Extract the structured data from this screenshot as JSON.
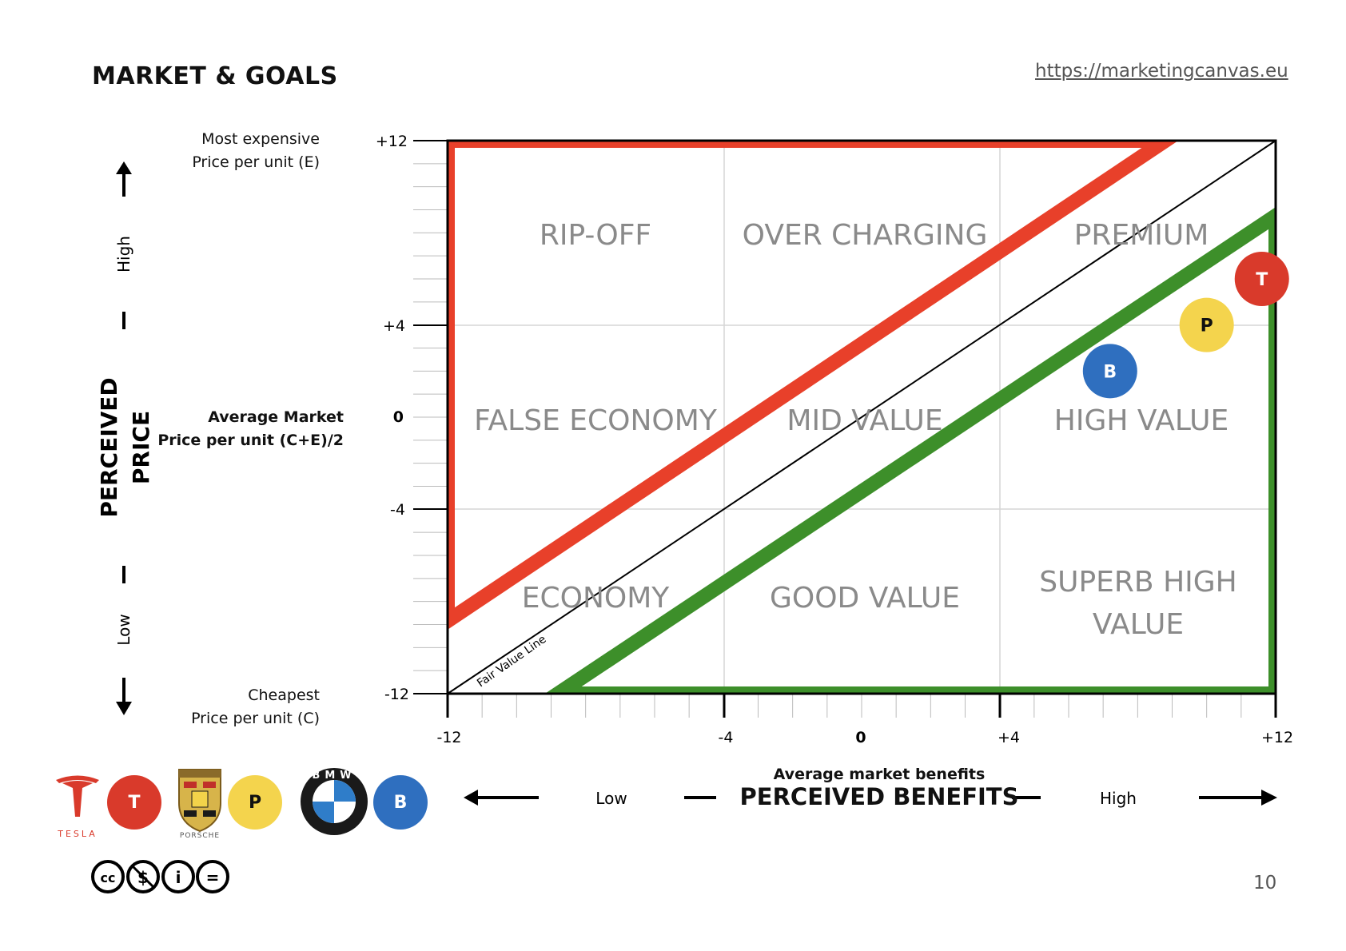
{
  "header": {
    "title": "MARKET & GOALS",
    "url": "https://marketingcanvas.eu"
  },
  "page_number": "10",
  "y_axis": {
    "top_label_1": "Most expensive",
    "top_label_2": "Price per unit (E)",
    "mid_label_1": "Average Market",
    "mid_label_2": "Price per unit (C+E)/2",
    "bottom_label_1": "Cheapest",
    "bottom_label_2": "Price per unit (C)",
    "title_line1": "PERCEIVED",
    "title_line2": "PRICE",
    "high": "High",
    "low": "Low",
    "ticks": [
      "+12",
      "+4",
      "0",
      "-4",
      "-12"
    ]
  },
  "x_axis": {
    "ticks": [
      "-12",
      "-4",
      "0",
      "+4",
      "+12"
    ],
    "subtitle": "Average market benefits",
    "title": "PERCEIVED BENEFITS",
    "low": "Low",
    "high": "High"
  },
  "zones": [
    "RIP-OFF",
    "OVER CHARGING",
    "PREMIUM",
    "FALSE ECONOMY",
    "MID VALUE",
    "HIGH VALUE",
    "ECONOMY",
    "GOOD VALUE",
    "SUPERB HIGH",
    "VALUE"
  ],
  "fair_value_line_label": "Fair Value Line",
  "colors": {
    "red": "#e8402a",
    "green": "#3d8f2a",
    "tesla": "#d93a2b",
    "porsche": "#f4d44d",
    "bmw": "#2f6fbf",
    "zone_text": "#8a8a8a"
  },
  "markers": [
    {
      "letter": "T",
      "brand": "Tesla",
      "benefit": 11.6,
      "price": 6.0
    },
    {
      "letter": "P",
      "brand": "Porsche",
      "benefit": 10.0,
      "price": 4.0
    },
    {
      "letter": "B",
      "brand": "BMW",
      "benefit": 7.2,
      "price": 2.0
    }
  ],
  "legend": [
    {
      "logo_text": "TESLA",
      "letter": "T"
    },
    {
      "logo_text": "PORSCHE",
      "letter": "P"
    },
    {
      "logo_text": "BMW",
      "letter": "B"
    }
  ],
  "license": [
    "cc",
    "$",
    "i",
    "="
  ]
}
